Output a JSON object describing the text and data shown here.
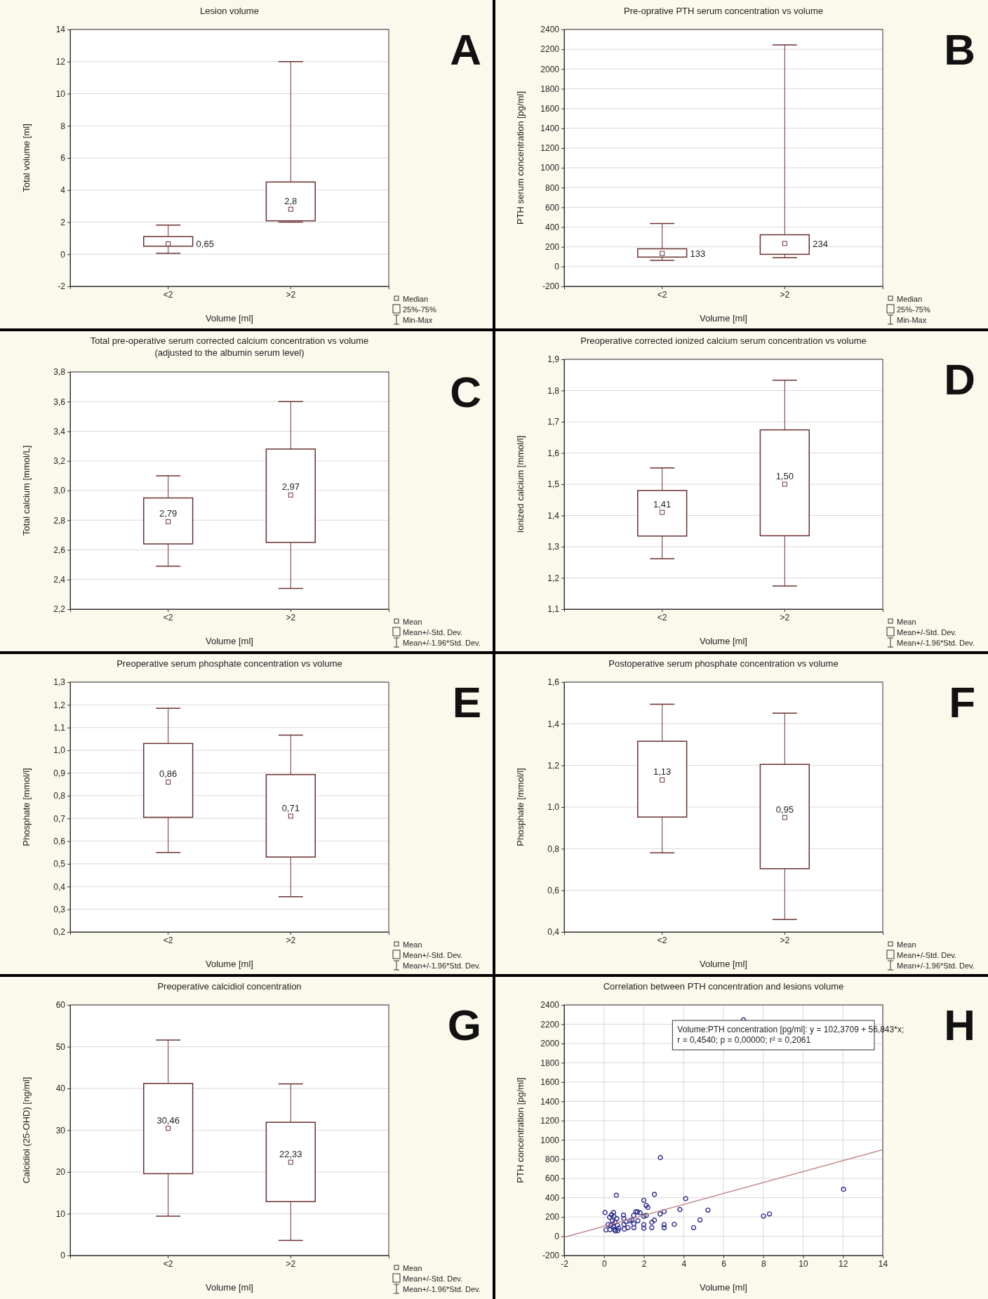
{
  "chart_data": [
    {
      "type": "box",
      "title": "Lesion volume",
      "xlabel": "Volume [ml]",
      "ylabel": "Total volume [ml]",
      "categories": [
        "<2",
        ">2"
      ],
      "color": "#6b3030",
      "grid": "y",
      "ylim": [
        -2,
        14
      ],
      "yticks": [
        -2,
        0,
        2,
        4,
        6,
        8,
        10,
        12,
        14
      ],
      "boxes": [
        {
          "low": 0.06,
          "q1": 0.5,
          "median": 0.65,
          "q3": 1.1,
          "high": 1.81
        },
        {
          "low": 2.0,
          "q1": 2.08,
          "median": 2.8,
          "q3": 4.5,
          "high": 12.0
        }
      ],
      "value_labels": [
        "0,65",
        "2,8"
      ],
      "annotations": [
        "A",
        "Median",
        "25%-75%",
        "Min-Max"
      ]
    },
    {
      "type": "box",
      "title": "Pre-oprative PTH serum concentration vs volume",
      "xlabel": "Volume [ml]",
      "ylabel": "PTH serum concentration [pg/ml]",
      "categories": [
        "<2",
        ">2"
      ],
      "color": "#6b3030",
      "grid": "y",
      "ylim": [
        -200,
        2400
      ],
      "yticks": [
        -200,
        0,
        200,
        400,
        600,
        800,
        1000,
        1200,
        1400,
        1600,
        1800,
        2000,
        2200,
        2400
      ],
      "boxes": [
        {
          "low": 62,
          "q1": 96,
          "median": 133,
          "q3": 180,
          "high": 436
        },
        {
          "low": 90,
          "q1": 124,
          "median": 234,
          "q3": 322,
          "high": 2244
        }
      ],
      "value_labels": [
        "133",
        "234"
      ],
      "annotations": [
        "B",
        "Median",
        "25%-75%",
        "Min-Max"
      ]
    },
    {
      "type": "box",
      "title": "Total pre-operative serum corrected calcium concentration vs volume",
      "subtitle": "(adjusted to the albumin serum level)",
      "xlabel": "Volume [ml]",
      "ylabel": "Total calcium [mmol/L]",
      "categories": [
        "<2",
        ">2"
      ],
      "color": "#6b3030",
      "grid": "y",
      "ylim": [
        2.2,
        3.8
      ],
      "yticks": [
        {
          "value": 2.2,
          "label": "2,2"
        },
        {
          "value": 2.4,
          "label": "2,4"
        },
        {
          "value": 2.6,
          "label": "2,6"
        },
        {
          "value": 2.8,
          "label": "2,8"
        },
        {
          "value": 3.0,
          "label": "3,0"
        },
        {
          "value": 3.2,
          "label": "3,2"
        },
        {
          "value": 3.4,
          "label": "3,4"
        },
        {
          "value": 3.6,
          "label": "3,6"
        },
        {
          "value": 3.8,
          "label": "3,8"
        }
      ],
      "boxes": [
        {
          "low": 2.49,
          "q1": 2.64,
          "mean": 2.79,
          "q3": 2.95,
          "high": 3.1
        },
        {
          "low": 2.34,
          "q1": 2.65,
          "mean": 2.97,
          "q3": 3.28,
          "high": 3.6
        }
      ],
      "value_labels": [
        "2,79",
        "2,97"
      ],
      "annotations": [
        "C",
        "Mean",
        "Mean+/-Std. Dev.",
        "Mean+/-1.96*Std. Dev."
      ]
    },
    {
      "type": "box",
      "title": "Preoperative corrected ionized calcium serum concentration vs volume",
      "xlabel": "Volume [ml]",
      "ylabel": "Ionized calcium [mmol/l]",
      "categories": [
        "<2",
        ">2"
      ],
      "color": "#6b3030",
      "grid": "y",
      "ylim": [
        1.1,
        1.9
      ],
      "yticks": [
        {
          "value": 1.1,
          "label": "1,1"
        },
        {
          "value": 1.2,
          "label": "1,2"
        },
        {
          "value": 1.3,
          "label": "1,3"
        },
        {
          "value": 1.4,
          "label": "1,4"
        },
        {
          "value": 1.5,
          "label": "1,5"
        },
        {
          "value": 1.6,
          "label": "1,6"
        },
        {
          "value": 1.7,
          "label": "1,7"
        },
        {
          "value": 1.8,
          "label": "1,8"
        },
        {
          "value": 1.9,
          "label": "1,9"
        }
      ],
      "boxes": [
        {
          "low": 1.261,
          "q1": 1.334,
          "mean": 1.41,
          "q3": 1.48,
          "high": 1.552
        },
        {
          "low": 1.174,
          "q1": 1.335,
          "mean": 1.5,
          "q3": 1.674,
          "high": 1.833
        }
      ],
      "value_labels": [
        "1,41",
        "1,50"
      ],
      "annotations": [
        "D",
        "Mean",
        "Mean+/-Std. Dev.",
        "Mean+/-1.96*Std. Dev."
      ]
    },
    {
      "type": "box",
      "title": "Preoperative serum phosphate concentration vs volume",
      "xlabel": "Volume [ml]",
      "ylabel": "Phosphate [mmol/l]",
      "categories": [
        "<2",
        ">2"
      ],
      "color": "#6b3030",
      "grid": "y",
      "ylim": [
        0.2,
        1.3
      ],
      "yticks": [
        {
          "value": 0.2,
          "label": "0,2"
        },
        {
          "value": 0.3,
          "label": "0,3"
        },
        {
          "value": 0.4,
          "label": "0,4"
        },
        {
          "value": 0.5,
          "label": "0,5"
        },
        {
          "value": 0.6,
          "label": "0,6"
        },
        {
          "value": 0.7,
          "label": "0,7"
        },
        {
          "value": 0.8,
          "label": "0,8"
        },
        {
          "value": 0.9,
          "label": "0,9"
        },
        {
          "value": 1.0,
          "label": "1,0"
        },
        {
          "value": 1.1,
          "label": "1,1"
        },
        {
          "value": 1.2,
          "label": "1,2"
        },
        {
          "value": 1.3,
          "label": "1,3"
        }
      ],
      "boxes": [
        {
          "low": 0.55,
          "q1": 0.705,
          "mean": 0.86,
          "q3": 1.03,
          "high": 1.185
        },
        {
          "low": 0.355,
          "q1": 0.53,
          "mean": 0.71,
          "q3": 0.893,
          "high": 1.067
        }
      ],
      "value_labels": [
        "0,86",
        "0,71"
      ],
      "annotations": [
        "E",
        "Mean",
        "Mean+/-Std. Dev.",
        "Mean+/-1.96*Std. Dev."
      ]
    },
    {
      "type": "box",
      "title": "Postoperative serum phosphate concentration vs volume",
      "xlabel": "Volume [ml]",
      "ylabel": "Phosphate [mmol/l]",
      "categories": [
        "<2",
        ">2"
      ],
      "color": "#6b3030",
      "grid": "y",
      "ylim": [
        0.4,
        1.6
      ],
      "yticks": [
        {
          "value": 0.4,
          "label": "0,4"
        },
        {
          "value": 0.6,
          "label": "0,6"
        },
        {
          "value": 0.8,
          "label": "0,8"
        },
        {
          "value": 1.0,
          "label": "1,0"
        },
        {
          "value": 1.2,
          "label": "1,2"
        },
        {
          "value": 1.4,
          "label": "1,4"
        },
        {
          "value": 1.6,
          "label": "1,6"
        }
      ],
      "boxes": [
        {
          "low": 0.78,
          "q1": 0.952,
          "mean": 1.13,
          "q3": 1.316,
          "high": 1.494
        },
        {
          "low": 0.46,
          "q1": 0.704,
          "mean": 0.95,
          "q3": 1.205,
          "high": 1.451
        }
      ],
      "value_labels": [
        "1,13",
        "0,95"
      ],
      "annotations": [
        "F",
        "Mean",
        "Mean+/-Std. Dev.",
        "Mean+/-1.96*Std. Dev."
      ]
    },
    {
      "type": "box",
      "title": "Preoperative calcidiol concentration",
      "xlabel": "Volume [ml]",
      "ylabel": "Calcidiol (25-OHD) [ng/ml]",
      "categories": [
        "<2",
        ">2"
      ],
      "color": "#6b3030",
      "grid": "y",
      "ylim": [
        0,
        60
      ],
      "yticks": [
        0,
        10,
        20,
        30,
        40,
        50,
        60
      ],
      "boxes": [
        {
          "low": 9.4,
          "q1": 19.6,
          "mean": 30.46,
          "q3": 41.2,
          "high": 51.6
        },
        {
          "low": 3.6,
          "q1": 12.9,
          "mean": 22.33,
          "q3": 31.9,
          "high": 41.1
        }
      ],
      "value_labels": [
        "30,46",
        "22,33"
      ],
      "annotations": [
        "G",
        "Mean",
        "Mean+/-Std. Dev.",
        "Mean+/-1.96*Std. Dev."
      ]
    },
    {
      "type": "scatter",
      "title": "Correlation between PTH concentration and lesions volume",
      "xlabel": "Volume [ml]",
      "ylabel": "PTH concentration [pg/ml]",
      "grid": true,
      "xlim": [
        -2,
        14
      ],
      "xticks": [
        -2,
        0,
        2,
        4,
        6,
        8,
        10,
        12,
        14
      ],
      "ylim": [
        -200,
        2400
      ],
      "yticks": [
        -200,
        0,
        200,
        400,
        600,
        800,
        1000,
        1200,
        1400,
        1600,
        1800,
        2000,
        2200,
        2400
      ],
      "series": [
        {
          "type": "scatter",
          "color": "#2a2a8c",
          "marker": "circle",
          "x": [
            0.05,
            0.1,
            0.28,
            0.2,
            0.3,
            0.35,
            0.42,
            0.48,
            0.5,
            0.55,
            0.48,
            0.52,
            0.62,
            0.64,
            0.67,
            0.7,
            0.74,
            0.58,
            0.38,
            0.98,
            1.0,
            1.0,
            1.02,
            1.11,
            1.2,
            1.3,
            1.4,
            1.49,
            1.5,
            1.5,
            1.6,
            1.68,
            1.7,
            1.81,
            2.0,
            2.0,
            2.0,
            2.0,
            2.12,
            2.2,
            2.12,
            2.4,
            2.4,
            2.53,
            2.53,
            2.82,
            2.83,
            3.02,
            3.02,
            3.02,
            3.53,
            3.81,
            4.1,
            4.5,
            4.82,
            5.22,
            7.0,
            8.01,
            8.31,
            12.03
          ],
          "values": [
            246,
            65,
            197,
            120,
            68,
            114,
            160,
            246,
            206,
            145,
            99,
            68,
            425,
            182,
            114,
            59,
            83,
            55,
            222,
            219,
            182,
            123,
            74,
            151,
            89,
            160,
            169,
            216,
            129,
            89,
            253,
            253,
            160,
            243,
            373,
            206,
            120,
            83,
            320,
            299,
            216,
            145,
            89,
            166,
            434,
            231,
            816,
            256,
            120,
            89,
            123,
            277,
            391,
            89,
            169,
            271,
            2245,
            209,
            231,
            487
          ]
        },
        {
          "type": "line",
          "color": "#c48a8a",
          "marker": "none",
          "x": [
            -2,
            14
          ],
          "values": [
            -11,
            898
          ]
        }
      ],
      "annotations": [
        "H",
        "Volume:PTH concentration [pg/ml]:   y = 102,3709 + 56,843*x;",
        "r = 0,4540; p = 0,00000; r² = 0,2061"
      ]
    }
  ]
}
